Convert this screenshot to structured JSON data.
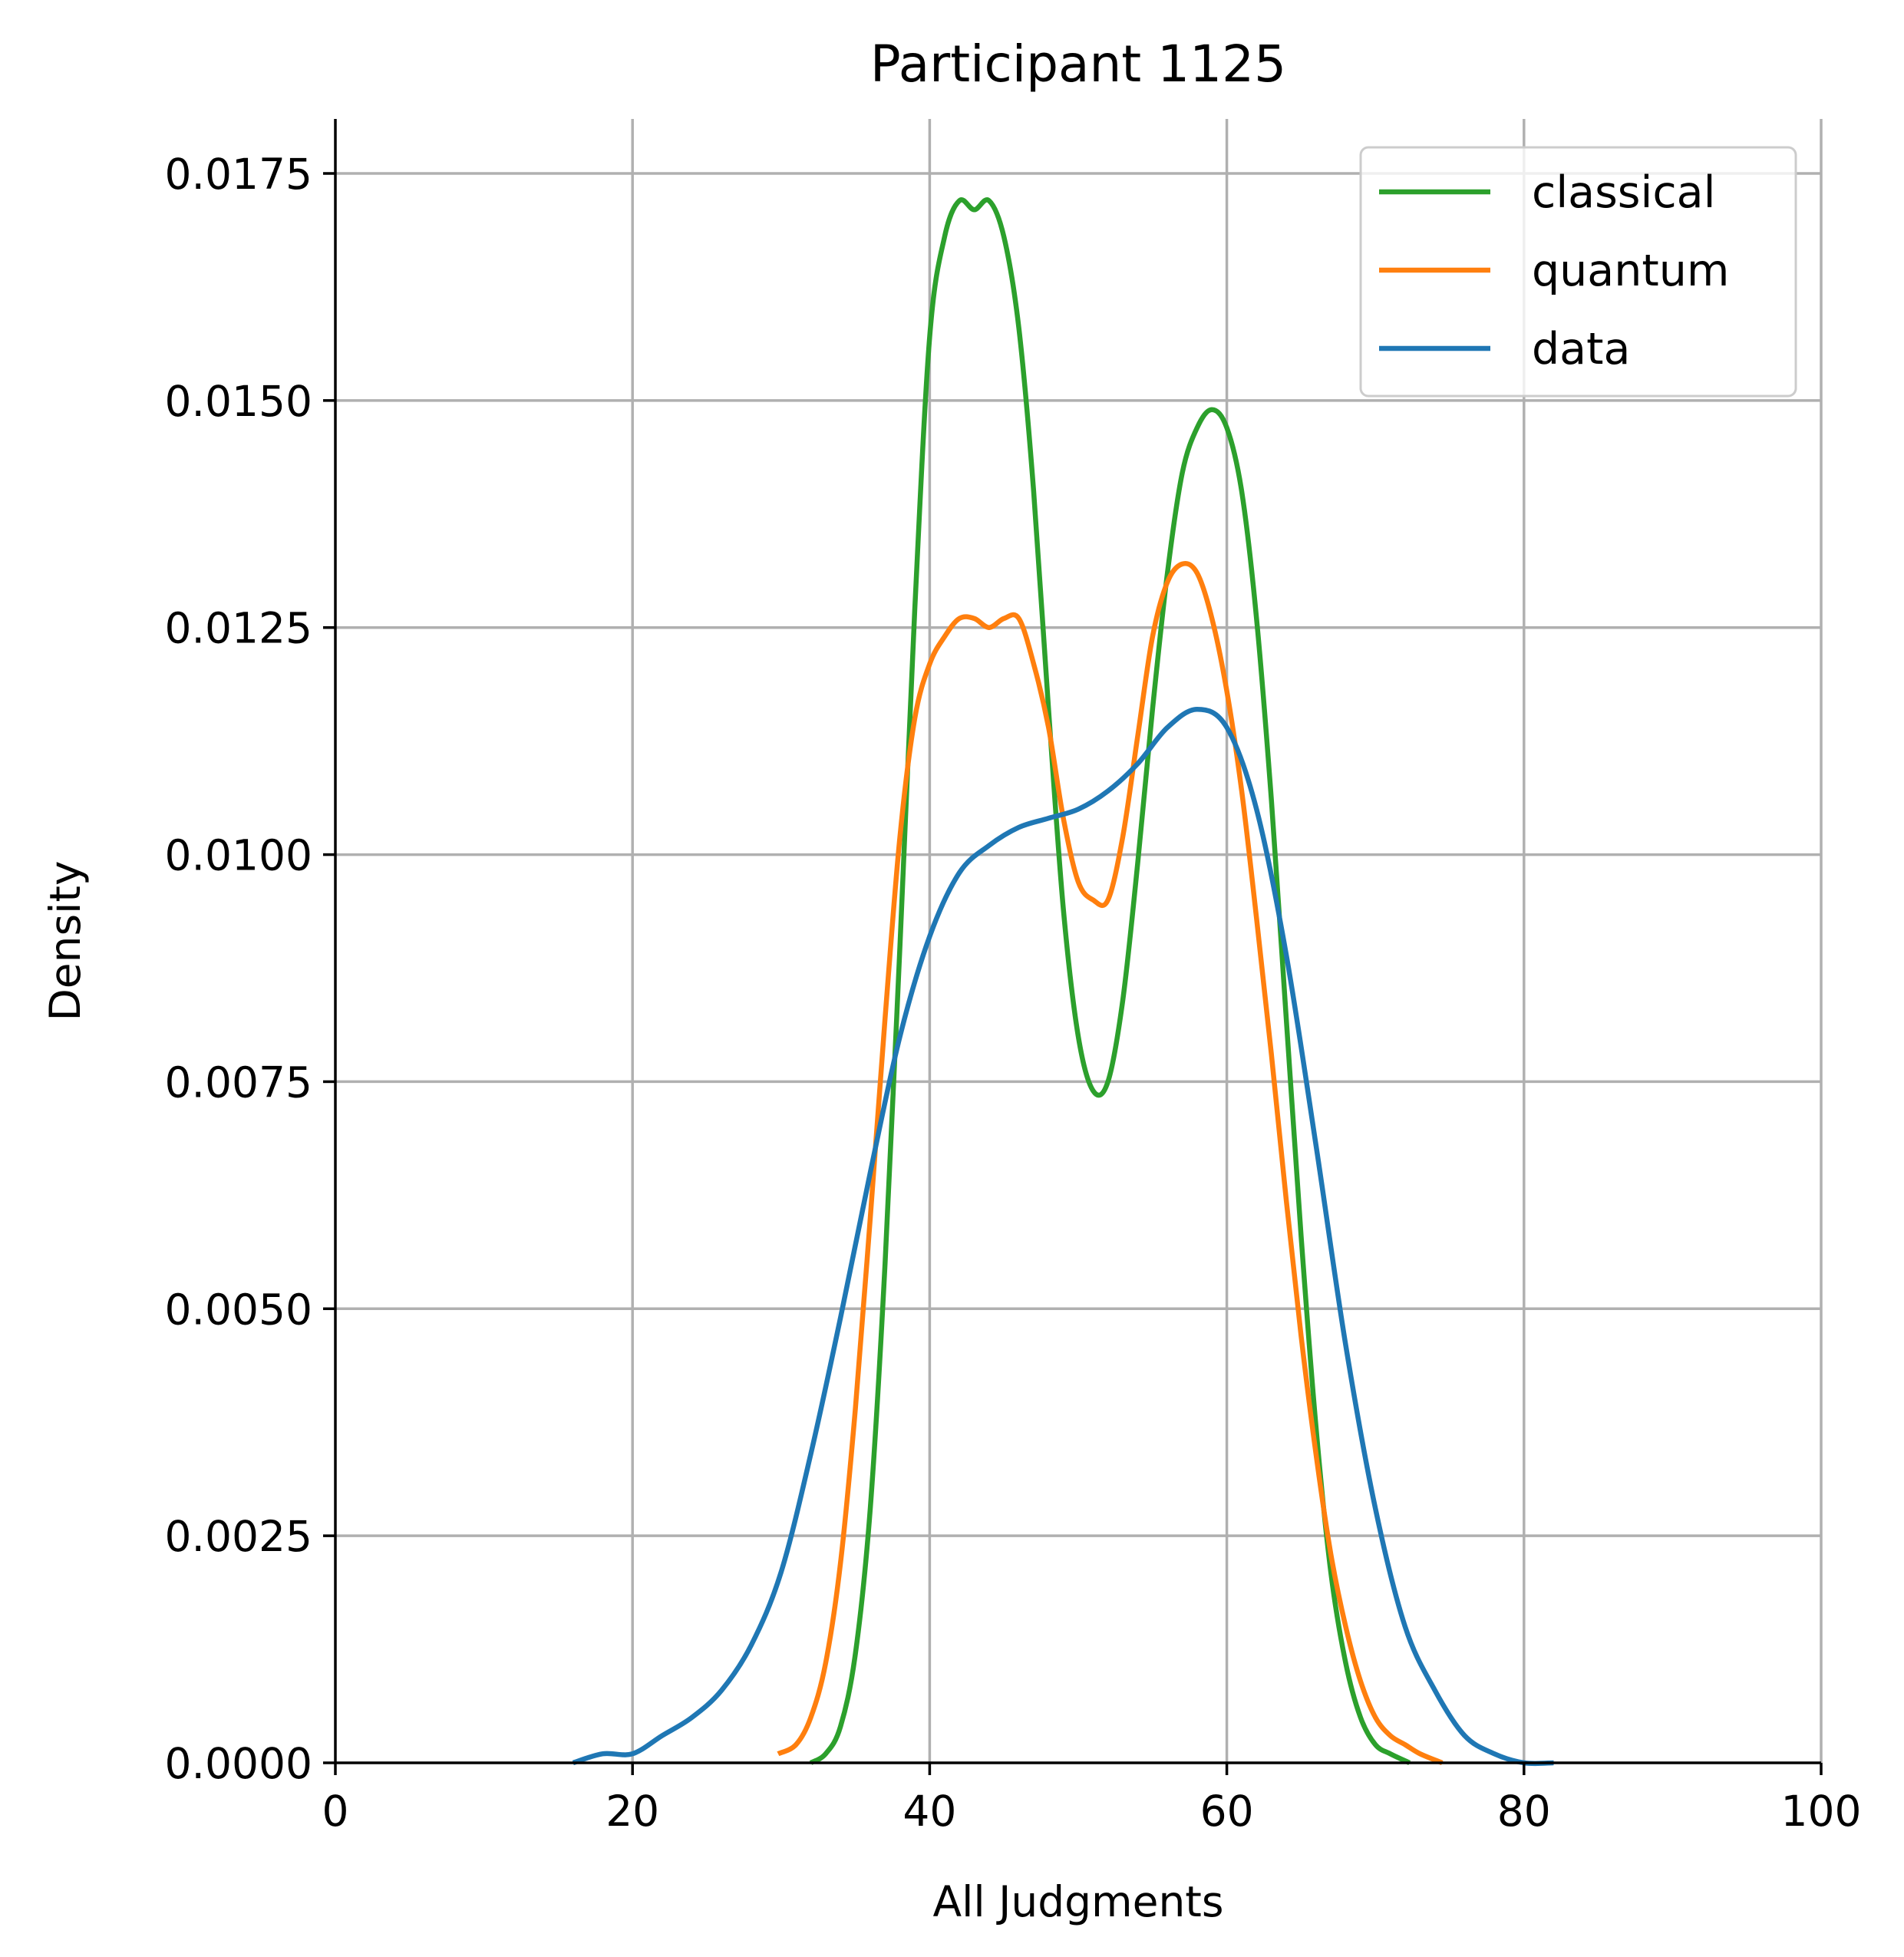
{
  "chart_data": {
    "type": "line",
    "title": "Participant 1125",
    "xlabel": "All Judgments",
    "ylabel": "Density",
    "xlim": [
      0,
      100
    ],
    "ylim": [
      0,
      0.0181
    ],
    "xticks": [
      0,
      20,
      40,
      60,
      80,
      100
    ],
    "xtick_labels": [
      "0",
      "20",
      "40",
      "60",
      "80",
      "100"
    ],
    "yticks": [
      0,
      0.0025,
      0.005,
      0.0075,
      0.01,
      0.0125,
      0.015,
      0.0175
    ],
    "ytick_labels": [
      "0.0000",
      "0.0025",
      "0.0050",
      "0.0075",
      "0.0100",
      "0.0125",
      "0.0150",
      "0.0175"
    ],
    "grid": true,
    "legend_position": "top-right",
    "series": [
      {
        "name": "classical",
        "color": "#2ca02c",
        "points": [
          [
            32,
            0
          ],
          [
            33,
            0.0001
          ],
          [
            34,
            0.0004
          ],
          [
            35,
            0.0012
          ],
          [
            36,
            0.0028
          ],
          [
            37,
            0.0055
          ],
          [
            38,
            0.009
          ],
          [
            39,
            0.0127
          ],
          [
            40,
            0.0157
          ],
          [
            41,
            0.0168
          ],
          [
            42,
            0.0172
          ],
          [
            43,
            0.0171
          ],
          [
            44,
            0.0172
          ],
          [
            45,
            0.0168
          ],
          [
            46,
            0.0158
          ],
          [
            47,
            0.014
          ],
          [
            48,
            0.0116
          ],
          [
            49,
            0.0094
          ],
          [
            50,
            0.008
          ],
          [
            51,
            0.0074
          ],
          [
            52,
            0.0075
          ],
          [
            53,
            0.0084
          ],
          [
            54,
            0.0099
          ],
          [
            55,
            0.0116
          ],
          [
            56,
            0.0131
          ],
          [
            57,
            0.0142
          ],
          [
            58,
            0.0147
          ],
          [
            59,
            0.0149
          ],
          [
            60,
            0.0147
          ],
          [
            61,
            0.014
          ],
          [
            62,
            0.0126
          ],
          [
            63,
            0.0106
          ],
          [
            64,
            0.0082
          ],
          [
            65,
            0.0058
          ],
          [
            66,
            0.0037
          ],
          [
            67,
            0.0021
          ],
          [
            68,
            0.0011
          ],
          [
            69,
            0.0005
          ],
          [
            70,
            0.0002
          ],
          [
            71,
            0.0001
          ],
          [
            72.3,
            0
          ]
        ]
      },
      {
        "name": "quantum",
        "color": "#ff7f0e",
        "points": [
          [
            29.8,
            0.0001
          ],
          [
            31,
            0.0002
          ],
          [
            32,
            0.0005
          ],
          [
            33,
            0.0011
          ],
          [
            34,
            0.0022
          ],
          [
            35,
            0.0039
          ],
          [
            36,
            0.006
          ],
          [
            37,
            0.0082
          ],
          [
            38,
            0.0102
          ],
          [
            39,
            0.0115
          ],
          [
            40,
            0.0121
          ],
          [
            41,
            0.0124
          ],
          [
            42,
            0.0126
          ],
          [
            43,
            0.0126
          ],
          [
            44,
            0.0125
          ],
          [
            45,
            0.0126
          ],
          [
            46,
            0.0126
          ],
          [
            47,
            0.0121
          ],
          [
            48,
            0.0114
          ],
          [
            49,
            0.0104
          ],
          [
            50,
            0.0097
          ],
          [
            51,
            0.0095
          ],
          [
            52,
            0.0095
          ],
          [
            53,
            0.0102
          ],
          [
            54,
            0.0113
          ],
          [
            55,
            0.0124
          ],
          [
            56,
            0.013
          ],
          [
            57,
            0.0132
          ],
          [
            58,
            0.0131
          ],
          [
            59,
            0.0126
          ],
          [
            60,
            0.0118
          ],
          [
            61,
            0.0107
          ],
          [
            62,
            0.0093
          ],
          [
            63,
            0.0078
          ],
          [
            64,
            0.0062
          ],
          [
            65,
            0.0047
          ],
          [
            66,
            0.0034
          ],
          [
            67,
            0.0023
          ],
          [
            68,
            0.0015
          ],
          [
            69,
            0.0009
          ],
          [
            70,
            0.0005
          ],
          [
            71,
            0.0003
          ],
          [
            72,
            0.0002
          ],
          [
            73,
            0.0001
          ],
          [
            74.5,
            0
          ]
        ]
      },
      {
        "name": "data",
        "color": "#1f77b4",
        "points": [
          [
            16,
            0
          ],
          [
            18,
            0.0001
          ],
          [
            20,
            0.0001
          ],
          [
            22,
            0.0003
          ],
          [
            24,
            0.0005
          ],
          [
            26,
            0.0008
          ],
          [
            28,
            0.0013
          ],
          [
            30,
            0.0021
          ],
          [
            32,
            0.0034
          ],
          [
            34,
            0.0049
          ],
          [
            36,
            0.0065
          ],
          [
            38,
            0.008
          ],
          [
            40,
            0.0091
          ],
          [
            42,
            0.0098
          ],
          [
            44,
            0.0101
          ],
          [
            46,
            0.0103
          ],
          [
            48,
            0.0104
          ],
          [
            50,
            0.0105
          ],
          [
            52,
            0.0107
          ],
          [
            54,
            0.011
          ],
          [
            56,
            0.0114
          ],
          [
            58,
            0.0116
          ],
          [
            60,
            0.0114
          ],
          [
            62,
            0.0105
          ],
          [
            64,
            0.0089
          ],
          [
            66,
            0.0068
          ],
          [
            68,
            0.0046
          ],
          [
            70,
            0.0028
          ],
          [
            72,
            0.0015
          ],
          [
            74,
            0.0008
          ],
          [
            76,
            0.0003
          ],
          [
            78,
            0.0001
          ],
          [
            80,
            0
          ],
          [
            82,
            0
          ]
        ]
      }
    ]
  }
}
